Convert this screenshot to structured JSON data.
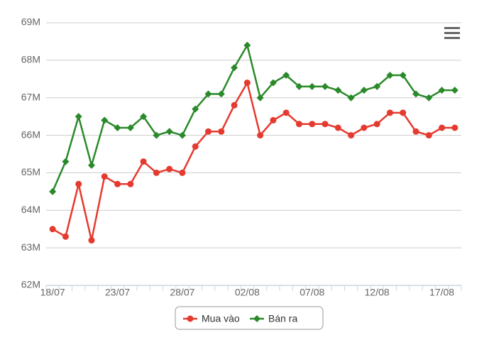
{
  "chart_data": {
    "type": "line",
    "categories": [
      "18/07",
      null,
      null,
      null,
      null,
      "23/07",
      null,
      null,
      null,
      null,
      "28/07",
      null,
      null,
      null,
      null,
      "02/08",
      null,
      null,
      null,
      null,
      "07/08",
      null,
      null,
      null,
      null,
      "12/08",
      null,
      null,
      null,
      null,
      "17/08",
      null
    ],
    "series": [
      {
        "name": "Mua vào",
        "color": "#e53a2f",
        "marker": "circle",
        "values": [
          63.5,
          63.3,
          64.7,
          63.2,
          64.9,
          64.7,
          64.7,
          65.3,
          65.0,
          65.1,
          65.0,
          65.7,
          66.1,
          66.1,
          66.8,
          67.4,
          66.0,
          66.4,
          66.6,
          66.3,
          66.3,
          66.3,
          66.2,
          66.0,
          66.2,
          66.3,
          66.6,
          66.6,
          66.1,
          66.0,
          66.2,
          66.2
        ]
      },
      {
        "name": "Bán ra",
        "color": "#2a8a2a",
        "marker": "diamond",
        "values": [
          64.5,
          65.3,
          66.5,
          65.2,
          66.4,
          66.2,
          66.2,
          66.5,
          66.0,
          66.1,
          66.0,
          66.7,
          67.1,
          67.1,
          67.8,
          68.4,
          67.0,
          67.4,
          67.6,
          67.3,
          67.3,
          67.3,
          67.2,
          67.0,
          67.2,
          67.3,
          67.6,
          67.6,
          67.1,
          67.0,
          67.2,
          67.2
        ]
      }
    ],
    "ylim": [
      62,
      69
    ],
    "yticks": [
      {
        "value": 62,
        "label": "62M"
      },
      {
        "value": 63,
        "label": "63M"
      },
      {
        "value": 64,
        "label": "64M"
      },
      {
        "value": 65,
        "label": "65M"
      },
      {
        "value": 66,
        "label": "66M"
      },
      {
        "value": 67,
        "label": "67M"
      },
      {
        "value": 68,
        "label": "68M"
      },
      {
        "value": 69,
        "label": "69M"
      }
    ],
    "grid": true
  }
}
